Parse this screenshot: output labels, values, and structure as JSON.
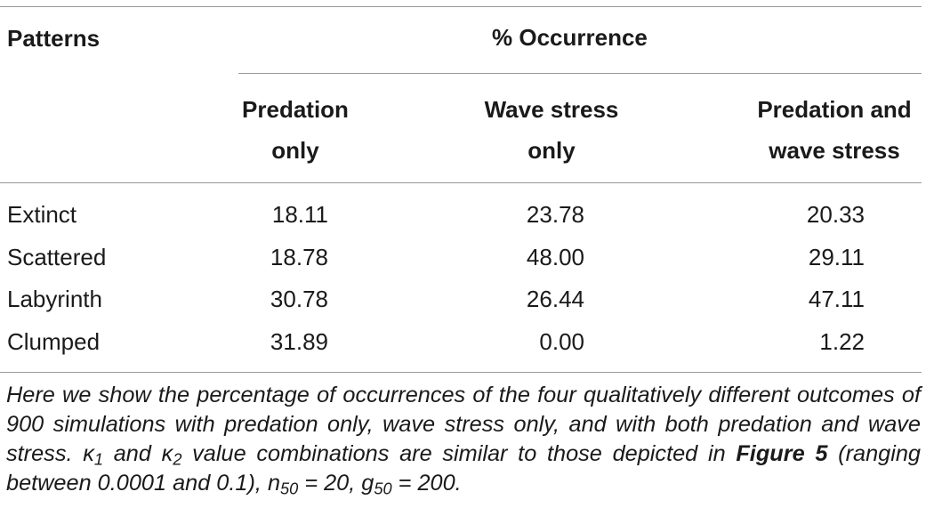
{
  "table": {
    "header": {
      "patterns": "Patterns",
      "occurrence": "% Occurrence",
      "columns": [
        {
          "line1": "Predation",
          "line2": "only"
        },
        {
          "line1": "Wave stress",
          "line2": "only"
        },
        {
          "line1": "Predation and",
          "line2": "wave stress"
        }
      ]
    },
    "rows": [
      {
        "label": "Extinct",
        "values": [
          "18.11",
          "23.78",
          "20.33"
        ]
      },
      {
        "label": "Scattered",
        "values": [
          "18.78",
          "48.00",
          "29.11"
        ]
      },
      {
        "label": "Labyrinth",
        "values": [
          "30.78",
          "26.44",
          "47.11"
        ]
      },
      {
        "label": "Clumped",
        "values": [
          "31.89",
          "0.00",
          "1.22"
        ]
      }
    ]
  },
  "caption": {
    "part1": "Here we show the percentage of occurrences of the four qualitatively different outcomes of 900 simulations with predation only, wave stress only, and with both predation and wave stress.",
    "kappa": "κ",
    "sub1": "1",
    "and": "and",
    "sub2": "2",
    "part2": "value combinations are similar to those depicted in",
    "figure_ref": "Figure 5",
    "part3": "(ranging between 0.0001 and 0.1), n",
    "n_sub": "50",
    "part4": "= 20, g",
    "g_sub": "50",
    "part5": "= 200."
  }
}
